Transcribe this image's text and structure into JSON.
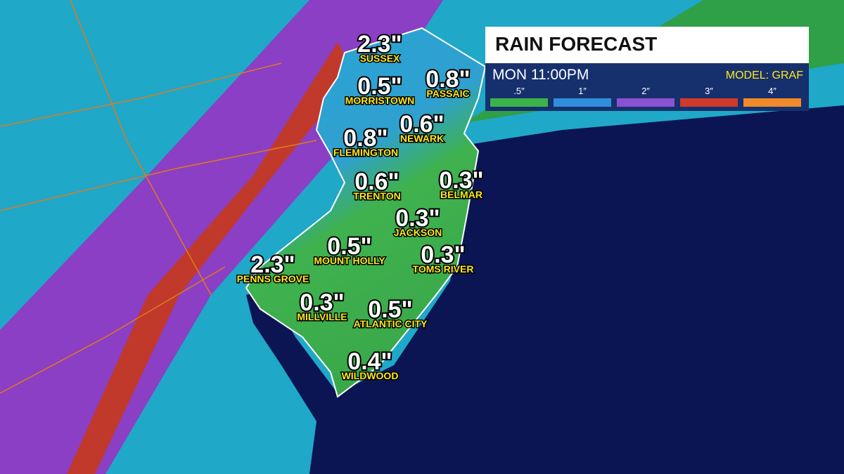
{
  "header": {
    "title": "RAIN FORECAST",
    "time": "MON 11:00PM",
    "model": "MODEL: GRAF"
  },
  "legend": [
    {
      "label": ".5″",
      "color": "#3cb34a"
    },
    {
      "label": "1″",
      "color": "#2f8fdc"
    },
    {
      "label": "2″",
      "color": "#8a52d2"
    },
    {
      "label": "3″",
      "color": "#d03a2a"
    },
    {
      "label": "4″",
      "color": "#f08a2a"
    }
  ],
  "cities": [
    {
      "name": "SUSSEX",
      "amount": "2.3\""
    },
    {
      "name": "MORRISTOWN",
      "amount": "0.5\""
    },
    {
      "name": "PASSAIC",
      "amount": "0.8\""
    },
    {
      "name": "NEWARK",
      "amount": "0.6\""
    },
    {
      "name": "FLEMINGTON",
      "amount": "0.8\""
    },
    {
      "name": "TRENTON",
      "amount": "0.6\""
    },
    {
      "name": "BELMAR",
      "amount": "0.3\""
    },
    {
      "name": "JACKSON",
      "amount": "0.3\""
    },
    {
      "name": "MOUNT HOLLY",
      "amount": "0.5\""
    },
    {
      "name": "TOMS RIVER",
      "amount": "0.3\""
    },
    {
      "name": "PENNS GROVE",
      "amount": "2.3\""
    },
    {
      "name": "MILLVILLE",
      "amount": "0.3\""
    },
    {
      "name": "ATLANTIC CITY",
      "amount": "0.5\""
    },
    {
      "name": "WILDWOOD",
      "amount": "0.4\""
    }
  ]
}
